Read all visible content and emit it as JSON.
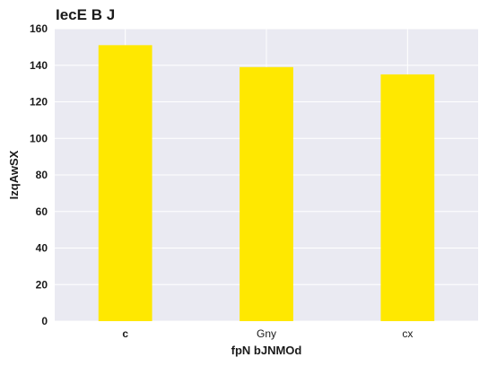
{
  "chart_data": {
    "type": "bar",
    "title": "IecE B J",
    "xlabel": "fpN bJNMOd",
    "ylabel": "IzqAwSX",
    "categories": [
      "c",
      "Gny",
      "cx"
    ],
    "values": [
      151,
      139,
      135
    ],
    "ylim": [
      0,
      160
    ],
    "yticks": [
      0,
      20,
      40,
      60,
      80,
      100,
      120,
      140,
      160
    ],
    "bar_color": "#ffe800",
    "plot_background": "#eaeaf2",
    "grid": true,
    "grid_color": "#ffffff"
  }
}
